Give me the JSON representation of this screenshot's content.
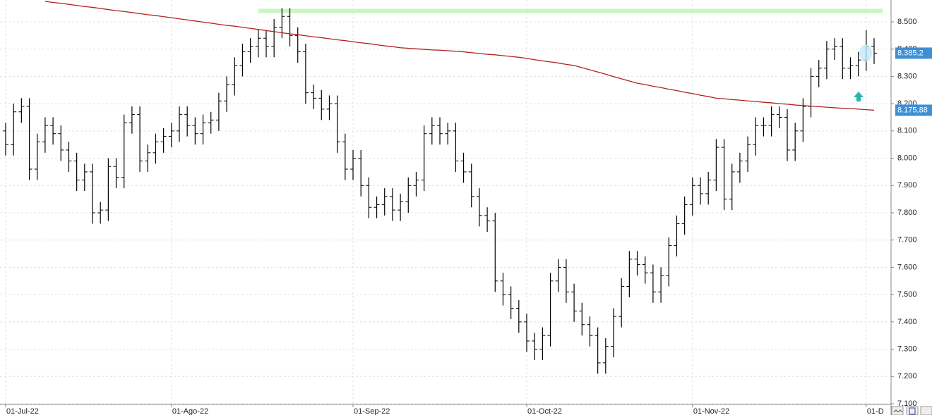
{
  "chart_data": {
    "type": "ohlc",
    "categories": [
      "01-Jul-22",
      null,
      null,
      null,
      null,
      null,
      null,
      null,
      null,
      null,
      null,
      null,
      null,
      null,
      null,
      null,
      null,
      null,
      null,
      null,
      null,
      "01-Ago-22",
      null,
      null,
      null,
      null,
      null,
      null,
      null,
      null,
      null,
      null,
      null,
      null,
      null,
      null,
      null,
      null,
      null,
      null,
      null,
      null,
      null,
      null,
      "01-Sep-22",
      null,
      null,
      null,
      null,
      null,
      null,
      null,
      null,
      null,
      null,
      null,
      null,
      null,
      null,
      null,
      null,
      null,
      null,
      null,
      null,
      null,
      "01-Oct-22",
      null,
      null,
      null,
      null,
      null,
      null,
      null,
      null,
      null,
      null,
      null,
      null,
      null,
      null,
      null,
      null,
      null,
      null,
      null,
      null,
      "01-Nov-22",
      null,
      null,
      null,
      null,
      null,
      null,
      null,
      null,
      null,
      null,
      null,
      null,
      null,
      null,
      null,
      null,
      null,
      null,
      null,
      null,
      null,
      "01-D",
      null
    ],
    "open": [
      8100,
      8050,
      8170,
      8190,
      7960,
      8060,
      8120,
      8090,
      8030,
      7990,
      7920,
      7950,
      7800,
      7810,
      7970,
      7930,
      8130,
      8160,
      7990,
      8020,
      8060,
      8080,
      8100,
      8160,
      8120,
      8090,
      8130,
      8140,
      8210,
      8270,
      8340,
      8390,
      8410,
      8440,
      8410,
      8480,
      8520,
      8450,
      8390,
      8240,
      8220,
      8180,
      8200,
      8060,
      7960,
      8000,
      7900,
      7820,
      7830,
      7860,
      7810,
      7840,
      7900,
      7920,
      8090,
      8120,
      8090,
      8100,
      7990,
      7950,
      7860,
      7790,
      7770,
      7550,
      7500,
      7450,
      7400,
      7330,
      7300,
      7350,
      7550,
      7600,
      7510,
      7440,
      7390,
      7350,
      7250,
      7310,
      7420,
      7530,
      7630,
      7610,
      7580,
      7510,
      7570,
      7680,
      7760,
      7830,
      7900,
      7870,
      7920,
      8040,
      7850,
      7950,
      7990,
      8050,
      8120,
      8120,
      8160,
      8150,
      8030,
      8100,
      8190,
      8300,
      8330,
      8400,
      8410,
      8330,
      8340,
      8360,
      8410
    ],
    "high": [
      8130,
      8200,
      8220,
      8220,
      8090,
      8150,
      8150,
      8120,
      8060,
      8020,
      7980,
      7980,
      7840,
      8000,
      8000,
      8160,
      8190,
      8190,
      8050,
      8090,
      8110,
      8130,
      8190,
      8190,
      8150,
      8160,
      8170,
      8240,
      8300,
      8370,
      8420,
      8440,
      8470,
      8470,
      8510,
      8550,
      8550,
      8480,
      8420,
      8270,
      8250,
      8230,
      8230,
      8090,
      8030,
      8030,
      7930,
      7860,
      7890,
      7890,
      7870,
      7930,
      7950,
      8120,
      8150,
      8150,
      8130,
      8130,
      8020,
      7980,
      7890,
      7820,
      7800,
      7580,
      7530,
      7480,
      7430,
      7360,
      7380,
      7580,
      7630,
      7630,
      7540,
      7470,
      7420,
      7380,
      7340,
      7450,
      7560,
      7660,
      7660,
      7640,
      7610,
      7600,
      7710,
      7790,
      7860,
      7930,
      7930,
      7950,
      8070,
      8070,
      7980,
      8020,
      8080,
      8150,
      8150,
      8190,
      8190,
      8180,
      8130,
      8220,
      8330,
      8360,
      8430,
      8440,
      8440,
      8370,
      8390,
      8470,
      8440
    ],
    "low": [
      8010,
      8010,
      8130,
      7920,
      7920,
      8020,
      8050,
      7990,
      7950,
      7880,
      7880,
      7760,
      7760,
      7770,
      7890,
      7890,
      8090,
      7950,
      7950,
      7980,
      8020,
      8040,
      8060,
      8080,
      8050,
      8050,
      8090,
      8100,
      8170,
      8230,
      8300,
      8350,
      8370,
      8370,
      8370,
      8440,
      8410,
      8350,
      8200,
      8180,
      8140,
      8140,
      8020,
      7920,
      7920,
      7860,
      7780,
      7780,
      7790,
      7770,
      7770,
      7800,
      7860,
      7880,
      8050,
      8050,
      8050,
      7950,
      7910,
      7820,
      7750,
      7730,
      7510,
      7460,
      7410,
      7360,
      7290,
      7260,
      7260,
      7310,
      7510,
      7470,
      7400,
      7350,
      7310,
      7210,
      7210,
      7270,
      7380,
      7490,
      7570,
      7540,
      7470,
      7470,
      7530,
      7640,
      7720,
      7790,
      7830,
      7830,
      7880,
      7810,
      7810,
      7910,
      7950,
      8010,
      8080,
      8080,
      8110,
      7990,
      7990,
      8060,
      8150,
      8260,
      8290,
      8360,
      8290,
      8290,
      8300,
      8320,
      8345
    ],
    "close": [
      8050,
      8170,
      8190,
      7960,
      8060,
      8120,
      8090,
      8030,
      7990,
      7920,
      7950,
      7800,
      7810,
      7970,
      7930,
      8130,
      8160,
      7990,
      8020,
      8060,
      8080,
      8100,
      8160,
      8120,
      8090,
      8130,
      8140,
      8210,
      8270,
      8340,
      8390,
      8410,
      8440,
      8410,
      8480,
      8520,
      8450,
      8390,
      8240,
      8220,
      8180,
      8200,
      8060,
      7960,
      8000,
      7900,
      7820,
      7830,
      7860,
      7810,
      7840,
      7900,
      7920,
      8090,
      8120,
      8090,
      8100,
      7990,
      7950,
      7860,
      7790,
      7770,
      7550,
      7500,
      7450,
      7400,
      7330,
      7300,
      7350,
      7550,
      7600,
      7510,
      7440,
      7390,
      7350,
      7250,
      7310,
      7420,
      7530,
      7630,
      7610,
      7580,
      7510,
      7570,
      7680,
      7760,
      7830,
      7900,
      7870,
      7920,
      8040,
      7850,
      7950,
      7990,
      8050,
      8120,
      8120,
      8160,
      8150,
      8030,
      8100,
      8190,
      8300,
      8330,
      8400,
      8410,
      8330,
      8340,
      8360,
      8410,
      8385.2
    ],
    "bar_color": "#000000",
    "moving_average": {
      "color": "#b22222",
      "values": [
        null,
        null,
        null,
        null,
        null,
        8575,
        8571,
        8568,
        8564,
        8560,
        8556,
        8553,
        8549,
        8545,
        8541,
        8538,
        8534,
        8530,
        8526,
        8523,
        8519,
        8515,
        8511,
        8507,
        8503,
        8499,
        8495,
        8491,
        8487,
        8484,
        8480,
        8476,
        8472,
        8468,
        8464,
        8460,
        8456,
        8453,
        8449,
        8445,
        8442,
        8438,
        8434,
        8431,
        8427,
        8423,
        8420,
        8416,
        8412,
        8409,
        8405,
        8403,
        8401,
        8399,
        8397,
        8396,
        8394,
        8392,
        8390,
        8387,
        8384,
        8381,
        8379,
        8376,
        8373,
        8370,
        8366,
        8361,
        8357,
        8353,
        8349,
        8344,
        8340,
        8332,
        8324,
        8316,
        8308,
        8299,
        8291,
        8283,
        8275,
        8270,
        8264,
        8259,
        8253,
        8248,
        8242,
        8237,
        8231,
        8226,
        8220,
        8218,
        8215,
        8213,
        8210,
        8208,
        8205,
        8203,
        8200,
        8198,
        8195,
        8193,
        8191,
        8189,
        8187,
        8185,
        8183,
        8182,
        8180,
        8178,
        8175.88
      ]
    },
    "last_price": {
      "value": 8385.2,
      "label": "8.385,2",
      "color": "#3d8fd6"
    },
    "last_average": {
      "value": 8175.88,
      "label": "8.175,88",
      "color": "#3d8fd6"
    },
    "resistance": {
      "value": 8540,
      "color": "#c8f5c0"
    },
    "ylim": [
      7100,
      8580
    ],
    "yticks": [
      {
        "value": 7100,
        "label": "7.100"
      },
      {
        "value": 7200,
        "label": "7.200"
      },
      {
        "value": 7300,
        "label": "7.300"
      },
      {
        "value": 7400,
        "label": "7.400"
      },
      {
        "value": 7500,
        "label": "7.500"
      },
      {
        "value": 7600,
        "label": "7.600"
      },
      {
        "value": 7700,
        "label": "7.700"
      },
      {
        "value": 7800,
        "label": "7.800"
      },
      {
        "value": 7900,
        "label": "7.900"
      },
      {
        "value": 8000,
        "label": "8.000"
      },
      {
        "value": 8100,
        "label": "8.100"
      },
      {
        "value": 8200,
        "label": "8.200"
      },
      {
        "value": 8300,
        "label": "8.300"
      },
      {
        "value": 8400,
        "label": "8.400"
      },
      {
        "value": 8500,
        "label": "8.500"
      }
    ],
    "grid": true
  }
}
